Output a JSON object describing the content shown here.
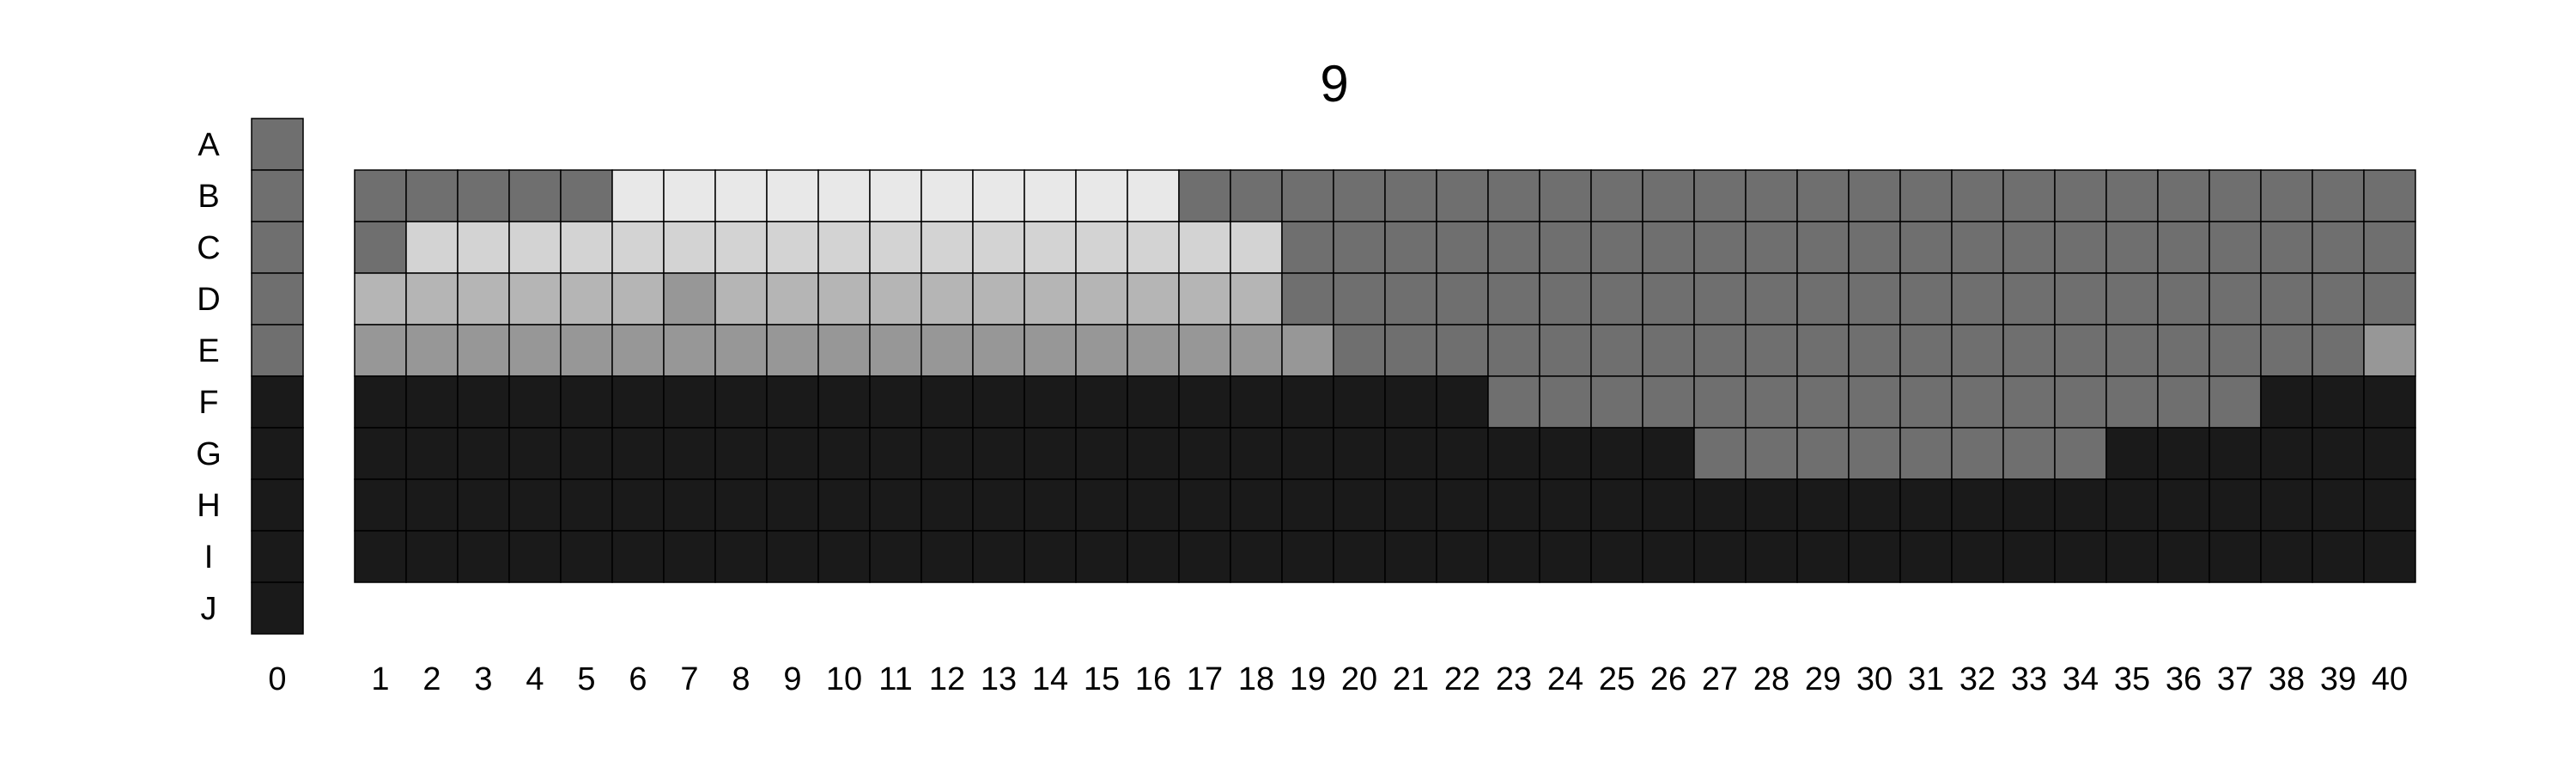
{
  "chart_data": {
    "type": "heatmap",
    "title": "9",
    "row_labels": [
      "A",
      "B",
      "C",
      "D",
      "E",
      "F",
      "G",
      "H",
      "I",
      "J"
    ],
    "column0": {
      "label": "0",
      "values": [
        "grey",
        "grey",
        "grey",
        "grey",
        "grey",
        "black",
        "black",
        "black",
        "black",
        "black"
      ]
    },
    "columns": [
      "1",
      "2",
      "3",
      "4",
      "5",
      "6",
      "7",
      "8",
      "9",
      "10",
      "11",
      "12",
      "13",
      "14",
      "15",
      "16",
      "17",
      "18",
      "19",
      "20",
      "21",
      "22",
      "23",
      "24",
      "25",
      "26",
      "27",
      "28",
      "29",
      "30",
      "31",
      "32",
      "33",
      "34",
      "35",
      "36",
      "37",
      "38",
      "39",
      "40"
    ],
    "grid_rows": [
      "B",
      "C",
      "D",
      "E",
      "F",
      "G",
      "H",
      "I"
    ],
    "grid": [
      [
        "grey",
        "grey",
        "grey",
        "grey",
        "grey",
        "lightest",
        "lightest",
        "lightest",
        "lightest",
        "lightest",
        "lightest",
        "lightest",
        "lightest",
        "lightest",
        "lightest",
        "lightest",
        "grey",
        "grey",
        "grey",
        "grey",
        "grey",
        "grey",
        "grey",
        "grey",
        "grey",
        "grey",
        "grey",
        "grey",
        "grey",
        "grey",
        "grey",
        "grey",
        "grey",
        "grey",
        "grey",
        "grey",
        "grey",
        "grey",
        "grey",
        "grey"
      ],
      [
        "grey",
        "lighter",
        "lighter",
        "lighter",
        "lighter",
        "lighter",
        "lighter",
        "lighter",
        "lighter",
        "lighter",
        "lighter",
        "lighter",
        "lighter",
        "lighter",
        "lighter",
        "lighter",
        "lighter",
        "lighter",
        "grey",
        "grey",
        "grey",
        "grey",
        "grey",
        "grey",
        "grey",
        "grey",
        "grey",
        "grey",
        "grey",
        "grey",
        "grey",
        "grey",
        "grey",
        "grey",
        "grey",
        "grey",
        "grey",
        "grey",
        "grey",
        "grey"
      ],
      [
        "light",
        "light",
        "light",
        "light",
        "light",
        "light",
        "mid",
        "light",
        "light",
        "light",
        "light",
        "light",
        "light",
        "light",
        "light",
        "light",
        "light",
        "light",
        "grey",
        "grey",
        "grey",
        "grey",
        "grey",
        "grey",
        "grey",
        "grey",
        "grey",
        "grey",
        "grey",
        "grey",
        "grey",
        "grey",
        "grey",
        "grey",
        "grey",
        "grey",
        "grey",
        "grey",
        "grey",
        "grey"
      ],
      [
        "mid",
        "mid",
        "mid",
        "mid",
        "mid",
        "mid",
        "mid",
        "mid",
        "mid",
        "mid",
        "mid",
        "mid",
        "mid",
        "mid",
        "mid",
        "mid",
        "mid",
        "mid",
        "mid",
        "grey",
        "grey",
        "grey",
        "grey",
        "grey",
        "grey",
        "grey",
        "grey",
        "grey",
        "grey",
        "grey",
        "grey",
        "grey",
        "grey",
        "grey",
        "grey",
        "grey",
        "grey",
        "grey",
        "grey",
        "mid"
      ],
      [
        "black",
        "black",
        "black",
        "black",
        "black",
        "black",
        "black",
        "black",
        "black",
        "black",
        "black",
        "black",
        "black",
        "black",
        "black",
        "black",
        "black",
        "black",
        "black",
        "black",
        "black",
        "black",
        "grey",
        "grey",
        "grey",
        "grey",
        "grey",
        "grey",
        "grey",
        "grey",
        "grey",
        "grey",
        "grey",
        "grey",
        "grey",
        "grey",
        "grey",
        "black",
        "black",
        "black"
      ],
      [
        "black",
        "black",
        "black",
        "black",
        "black",
        "black",
        "black",
        "black",
        "black",
        "black",
        "black",
        "black",
        "black",
        "black",
        "black",
        "black",
        "black",
        "black",
        "black",
        "black",
        "black",
        "black",
        "black",
        "black",
        "black",
        "black",
        "grey",
        "grey",
        "grey",
        "grey",
        "grey",
        "grey",
        "grey",
        "grey",
        "black",
        "black",
        "black",
        "black",
        "black",
        "black"
      ],
      [
        "black",
        "black",
        "black",
        "black",
        "black",
        "black",
        "black",
        "black",
        "black",
        "black",
        "black",
        "black",
        "black",
        "black",
        "black",
        "black",
        "black",
        "black",
        "black",
        "black",
        "black",
        "black",
        "black",
        "black",
        "black",
        "black",
        "black",
        "black",
        "black",
        "black",
        "black",
        "black",
        "black",
        "black",
        "black",
        "black",
        "black",
        "black",
        "black",
        "black"
      ],
      [
        "black",
        "black",
        "black",
        "black",
        "black",
        "black",
        "black",
        "black",
        "black",
        "black",
        "black",
        "black",
        "black",
        "black",
        "black",
        "black",
        "black",
        "black",
        "black",
        "black",
        "black",
        "black",
        "black",
        "black",
        "black",
        "black",
        "black",
        "black",
        "black",
        "black",
        "black",
        "black",
        "black",
        "black",
        "black",
        "black",
        "black",
        "black",
        "black",
        "black"
      ]
    ],
    "palette": {
      "grey": "#6f6f6f",
      "lightest": "#e8e8e8",
      "lighter": "#d3d3d3",
      "light": "#b5b5b5",
      "mid": "#979797",
      "black": "#1a1a1a"
    },
    "legend": false
  }
}
